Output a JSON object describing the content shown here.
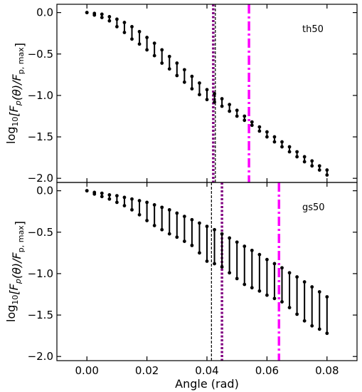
{
  "chart_data": [
    {
      "type": "scatter",
      "panel_label": "th50",
      "ylabel_prefix": "log",
      "ylabel_sub": "10",
      "ylabel_rest": "[F",
      "ylabel_sub2": "p",
      "ylabel_mid": "(θ)/F",
      "ylabel_sub3": "p, max",
      "ylabel_end": "]",
      "xlim": [
        -0.01,
        0.09
      ],
      "ylim": [
        -2.05,
        0.1
      ],
      "yticks": [
        0.0,
        -0.5,
        -1.0,
        -1.5,
        -2.0
      ],
      "yticklabels": [
        "0.0",
        "−0.5",
        "−1.0",
        "−1.5",
        "−2.0"
      ],
      "vlines": [
        {
          "x": 0.0428,
          "style": "dashed",
          "color": "#000000"
        },
        {
          "x": 0.0421,
          "style": "dotted",
          "color": "#800080"
        },
        {
          "x": 0.054,
          "style": "dashdot",
          "color": "#ff00ff"
        }
      ],
      "x": [
        0.0,
        0.0025,
        0.005,
        0.0075,
        0.01,
        0.0125,
        0.015,
        0.0175,
        0.02,
        0.0225,
        0.025,
        0.0275,
        0.03,
        0.0325,
        0.035,
        0.0375,
        0.04,
        0.0425,
        0.045,
        0.0475,
        0.05,
        0.0525,
        0.055,
        0.0575,
        0.06,
        0.0625,
        0.065,
        0.0675,
        0.07,
        0.0725,
        0.075,
        0.0775,
        0.08
      ],
      "y_upper": [
        0.0,
        -0.01,
        -0.02,
        -0.05,
        -0.08,
        -0.12,
        -0.17,
        -0.23,
        -0.3,
        -0.37,
        -0.45,
        -0.53,
        -0.61,
        -0.69,
        -0.77,
        -0.85,
        -0.93,
        -0.98,
        -1.04,
        -1.11,
        -1.18,
        -1.25,
        -1.32,
        -1.38,
        -1.44,
        -1.5,
        -1.56,
        -1.62,
        -1.68,
        -1.74,
        -1.79,
        -1.85,
        -1.9
      ],
      "y_lower": [
        0.0,
        -0.03,
        -0.06,
        -0.1,
        -0.17,
        -0.24,
        -0.32,
        -0.38,
        -0.45,
        -0.52,
        -0.61,
        -0.68,
        -0.76,
        -0.84,
        -0.92,
        -0.99,
        -1.05,
        -1.08,
        -1.13,
        -1.19,
        -1.25,
        -1.3,
        -1.36,
        -1.43,
        -1.5,
        -1.56,
        -1.62,
        -1.68,
        -1.74,
        -1.8,
        -1.85,
        -1.9,
        -1.96
      ]
    },
    {
      "type": "scatter",
      "panel_label": "gs50",
      "ylabel_prefix": "log",
      "ylabel_sub": "10",
      "ylabel_rest": "[F",
      "ylabel_sub2": "p",
      "ylabel_mid": "(θ)/F",
      "ylabel_sub3": "p, max",
      "ylabel_end": "]",
      "xlabel": "Angle (rad)",
      "xlim": [
        -0.01,
        0.09
      ],
      "ylim": [
        -2.05,
        0.1
      ],
      "xticks": [
        0.0,
        0.02,
        0.04,
        0.06,
        0.08
      ],
      "xticklabels": [
        "0.00",
        "0.02",
        "0.04",
        "0.06",
        "0.08"
      ],
      "yticks": [
        0.0,
        -0.5,
        -1.0,
        -1.5,
        -2.0
      ],
      "yticklabels": [
        "0.0",
        "−0.5",
        "−1.0",
        "−1.5",
        "−2.0"
      ],
      "vlines": [
        {
          "x": 0.0415,
          "style": "dashed",
          "color": "#000000"
        },
        {
          "x": 0.045,
          "style": "dotted",
          "color": "#800080"
        },
        {
          "x": 0.064,
          "style": "dashdot",
          "color": "#ff00ff"
        }
      ],
      "x": [
        0.0,
        0.0025,
        0.005,
        0.0075,
        0.01,
        0.0125,
        0.015,
        0.0175,
        0.02,
        0.0225,
        0.025,
        0.0275,
        0.03,
        0.0325,
        0.035,
        0.0375,
        0.04,
        0.0425,
        0.045,
        0.0475,
        0.05,
        0.0525,
        0.055,
        0.0575,
        0.06,
        0.0625,
        0.065,
        0.0675,
        0.07,
        0.0725,
        0.075,
        0.0775,
        0.08
      ],
      "y_upper": [
        0.0,
        -0.02,
        -0.03,
        -0.05,
        -0.06,
        -0.08,
        -0.1,
        -0.12,
        -0.14,
        -0.17,
        -0.2,
        -0.23,
        -0.27,
        -0.31,
        -0.35,
        -0.39,
        -0.43,
        -0.47,
        -0.52,
        -0.57,
        -0.62,
        -0.67,
        -0.72,
        -0.77,
        -0.83,
        -0.88,
        -0.93,
        -0.99,
        -1.04,
        -1.1,
        -1.16,
        -1.22,
        -1.28
      ],
      "y_lower": [
        0.0,
        -0.04,
        -0.07,
        -0.1,
        -0.14,
        -0.18,
        -0.23,
        -0.29,
        -0.36,
        -0.42,
        -0.47,
        -0.52,
        -0.56,
        -0.61,
        -0.66,
        -0.75,
        -0.85,
        -0.88,
        -0.92,
        -0.99,
        -1.06,
        -1.13,
        -1.17,
        -1.21,
        -1.26,
        -1.3,
        -1.34,
        -1.41,
        -1.49,
        -1.57,
        -1.63,
        -1.67,
        -1.72
      ]
    }
  ]
}
